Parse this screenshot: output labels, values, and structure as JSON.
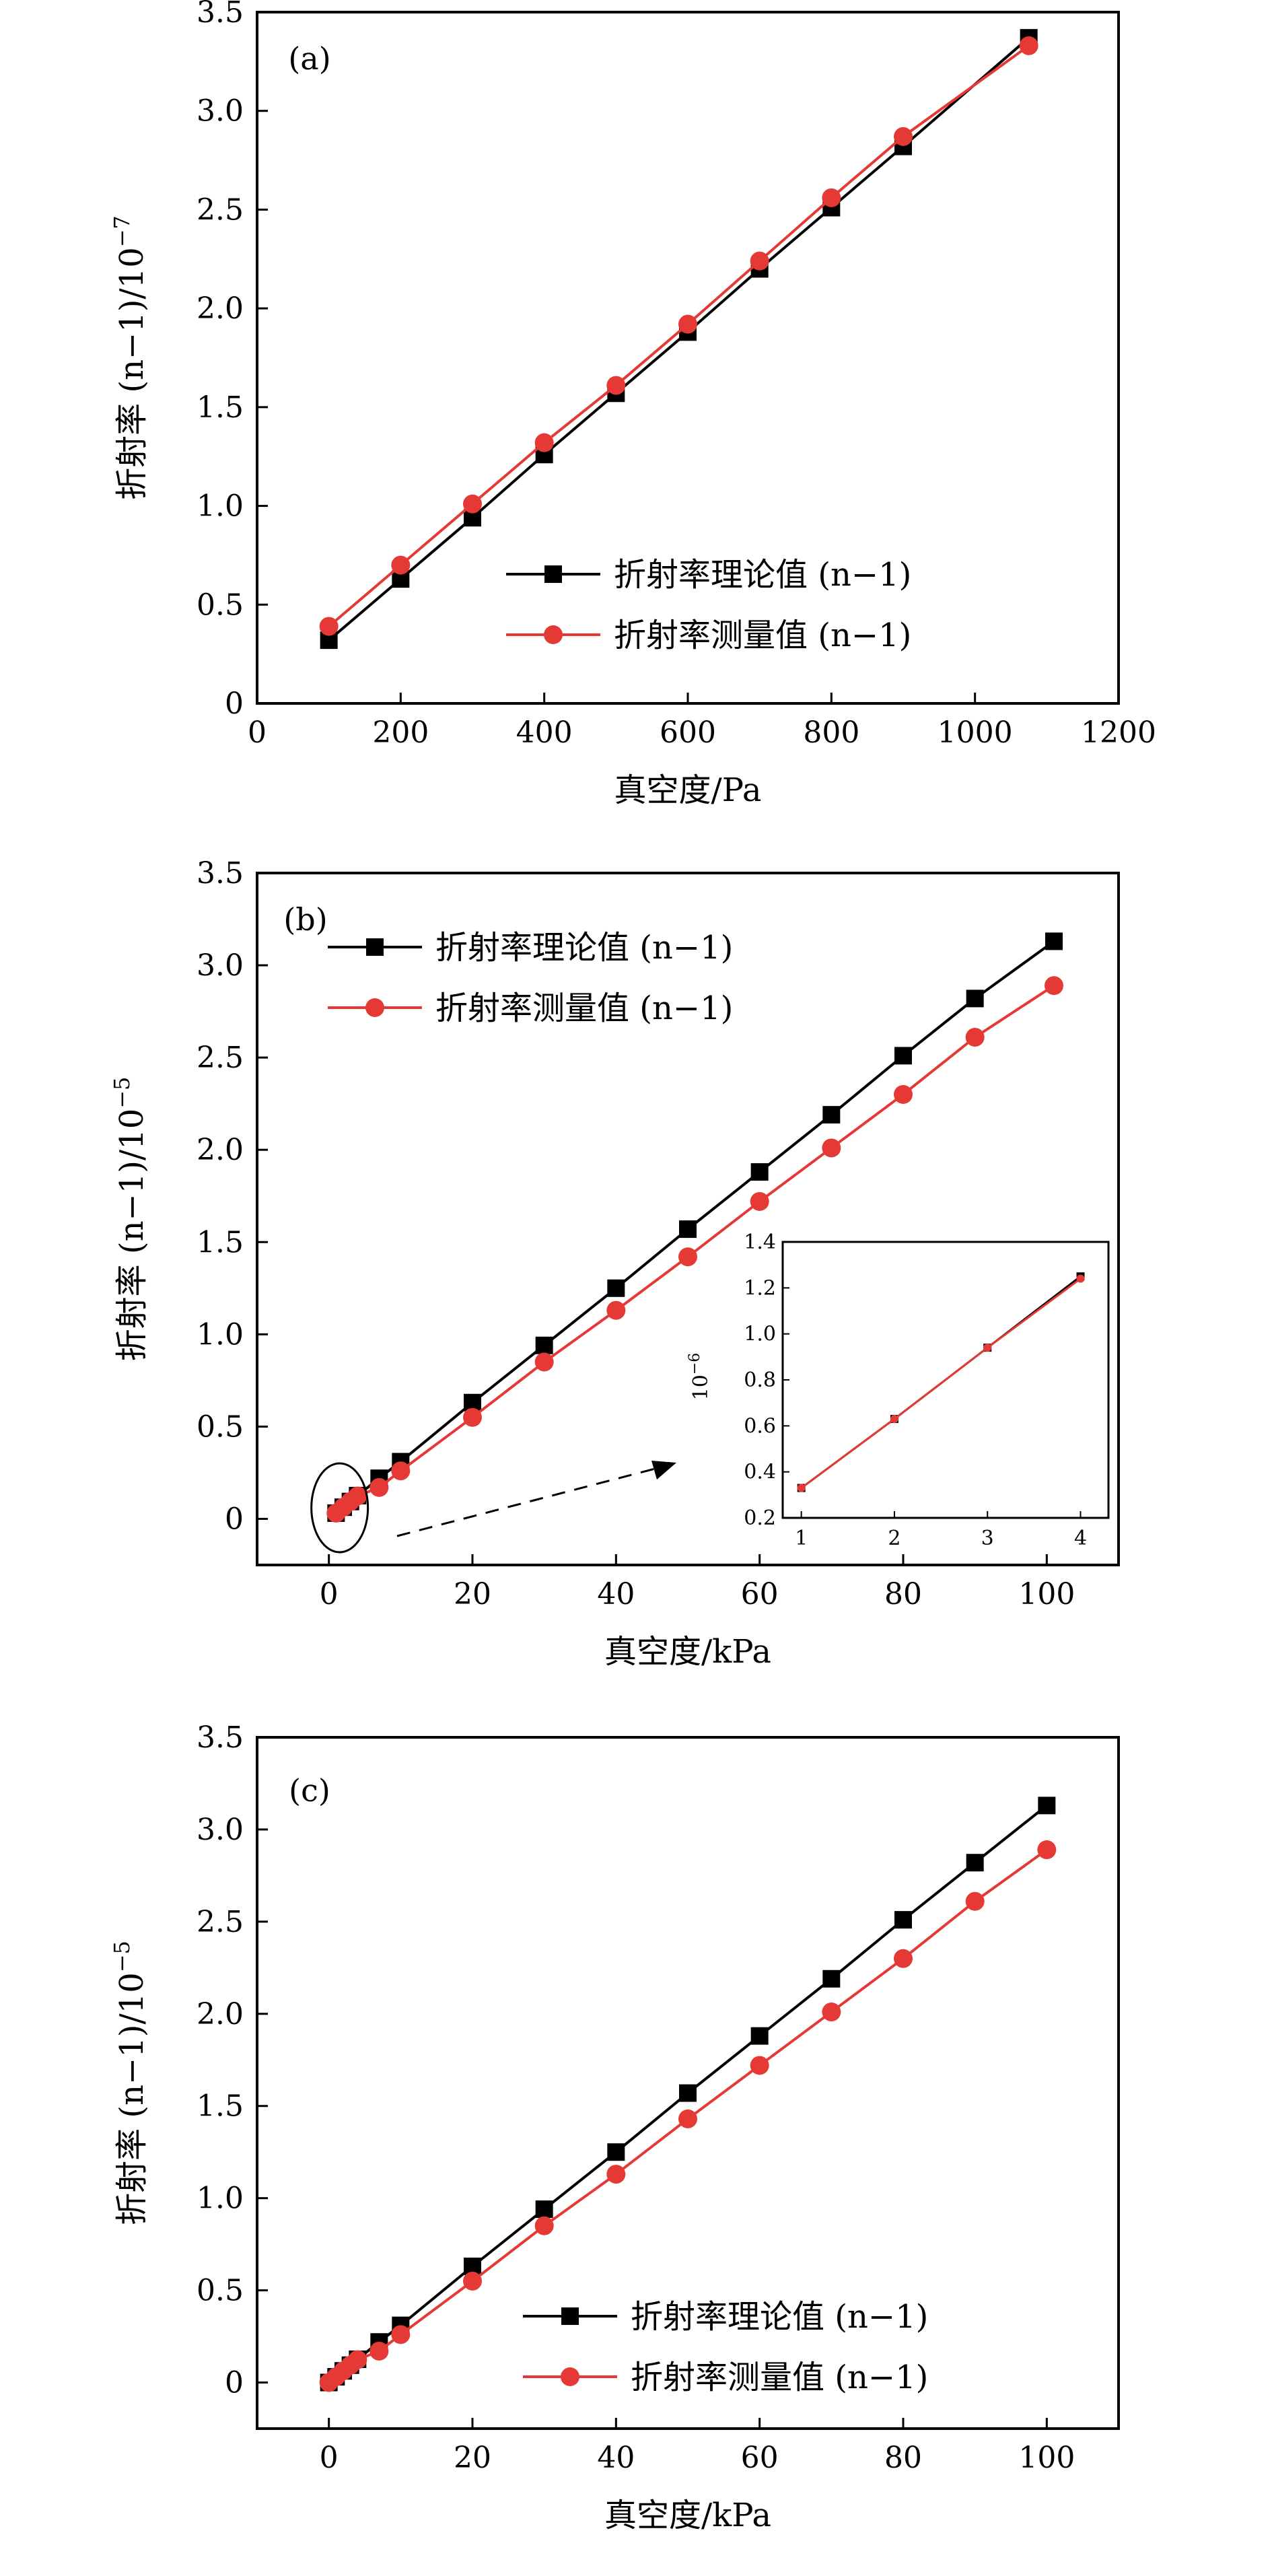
{
  "colors": {
    "theory": "#000000",
    "measured": "#e53935",
    "axis": "#000000"
  },
  "chart_data": [
    {
      "id": "a",
      "type": "line",
      "panel_label": "(a)",
      "xlabel": "真空度/Pa",
      "ylabel": "折射率 (n−1)/10",
      "ylabel_exp": "−7",
      "xlim": [
        0,
        1200
      ],
      "ylim": [
        0,
        3.5
      ],
      "x_ticks": [
        "0",
        "200",
        "400",
        "600",
        "800",
        "1000",
        "1200"
      ],
      "y_ticks": [
        "0",
        "0.5",
        "1.0",
        "1.5",
        "2.0",
        "2.5",
        "3.0",
        "3.5"
      ],
      "legend_position": "bottom-right",
      "series": [
        {
          "name": "折射率理论值 (n−1)",
          "marker": "square",
          "x": [
            100,
            200,
            300,
            400,
            500,
            600,
            700,
            800,
            900,
            1075
          ],
          "y": [
            0.32,
            0.63,
            0.94,
            1.26,
            1.57,
            1.88,
            2.2,
            2.51,
            2.82,
            3.37
          ]
        },
        {
          "name": "折射率测量值 (n−1)",
          "marker": "circle",
          "x": [
            100,
            200,
            300,
            400,
            500,
            600,
            700,
            800,
            900,
            1075
          ],
          "y": [
            0.39,
            0.7,
            1.01,
            1.32,
            1.61,
            1.92,
            2.24,
            2.56,
            2.87,
            3.33
          ]
        }
      ]
    },
    {
      "id": "b",
      "type": "line",
      "panel_label": "(b)",
      "xlabel": "真空度/kPa",
      "ylabel": "折射率 (n−1)/10",
      "ylabel_exp": "−5",
      "xlim": [
        -10,
        110
      ],
      "ylim": [
        -0.25,
        3.5
      ],
      "x_ticks": [
        "0",
        "20",
        "40",
        "60",
        "80",
        "100"
      ],
      "y_ticks": [
        "0",
        "0.5",
        "1.0",
        "1.5",
        "2.0",
        "2.5",
        "3.0",
        "3.5"
      ],
      "legend_position": "top-left",
      "series": [
        {
          "name": "折射率理论值 (n−1)",
          "marker": "square",
          "x": [
            1,
            2,
            3,
            4,
            7,
            10,
            20,
            30,
            40,
            50,
            60,
            70,
            80,
            90,
            101
          ],
          "y": [
            0.031,
            0.063,
            0.094,
            0.126,
            0.22,
            0.31,
            0.63,
            0.94,
            1.25,
            1.57,
            1.88,
            2.19,
            2.51,
            2.82,
            3.13
          ]
        },
        {
          "name": "折射率测量值 (n−1)",
          "marker": "circle",
          "x": [
            1,
            2,
            3,
            4,
            7,
            10,
            20,
            30,
            40,
            50,
            60,
            70,
            80,
            90,
            101
          ],
          "y": [
            0.031,
            0.063,
            0.094,
            0.124,
            0.17,
            0.26,
            0.55,
            0.85,
            1.13,
            1.42,
            1.72,
            2.01,
            2.3,
            2.61,
            2.89
          ]
        }
      ],
      "inset": {
        "ylabel": "10",
        "ylabel_exp": "−6",
        "xlim": [
          0.8,
          4.3
        ],
        "ylim": [
          0.2,
          1.4
        ],
        "x_ticks": [
          "1",
          "2",
          "3",
          "4"
        ],
        "y_ticks": [
          "0.2",
          "0.4",
          "0.6",
          "0.8",
          "1.0",
          "1.2",
          "1.4"
        ],
        "series": [
          {
            "name": "折射率理论值 (n−1)",
            "marker": "square",
            "x": [
              1,
              2,
              3,
              4
            ],
            "y": [
              0.33,
              0.63,
              0.94,
              1.25
            ]
          },
          {
            "name": "折射率测量值 (n−1)",
            "marker": "circle",
            "x": [
              1,
              2,
              3,
              4
            ],
            "y": [
              0.33,
              0.63,
              0.94,
              1.24
            ]
          }
        ]
      }
    },
    {
      "id": "c",
      "type": "line",
      "panel_label": "(c)",
      "xlabel": "真空度/kPa",
      "ylabel": "折射率 (n−1)/10",
      "ylabel_exp": "−5",
      "xlim": [
        -10,
        110
      ],
      "ylim": [
        -0.25,
        3.5
      ],
      "x_ticks": [
        "0",
        "20",
        "40",
        "60",
        "80",
        "100"
      ],
      "y_ticks": [
        "0",
        "0.5",
        "1.0",
        "1.5",
        "2.0",
        "2.5",
        "3.0",
        "3.5"
      ],
      "legend_position": "bottom-right",
      "series": [
        {
          "name": "折射率理论值 (n−1)",
          "marker": "square",
          "x": [
            0,
            1,
            2,
            3,
            4,
            7,
            10,
            20,
            30,
            40,
            50,
            60,
            70,
            80,
            90,
            100
          ],
          "y": [
            0.0,
            0.031,
            0.063,
            0.094,
            0.126,
            0.22,
            0.31,
            0.63,
            0.94,
            1.25,
            1.57,
            1.88,
            2.19,
            2.51,
            2.82,
            3.13
          ]
        },
        {
          "name": "折射率测量值 (n−1)",
          "marker": "circle",
          "x": [
            0,
            1,
            2,
            3,
            4,
            7,
            10,
            20,
            30,
            40,
            50,
            60,
            70,
            80,
            90,
            100
          ],
          "y": [
            0.0,
            0.031,
            0.063,
            0.094,
            0.124,
            0.17,
            0.26,
            0.55,
            0.85,
            1.13,
            1.43,
            1.72,
            2.01,
            2.3,
            2.61,
            2.89
          ]
        }
      ]
    }
  ]
}
